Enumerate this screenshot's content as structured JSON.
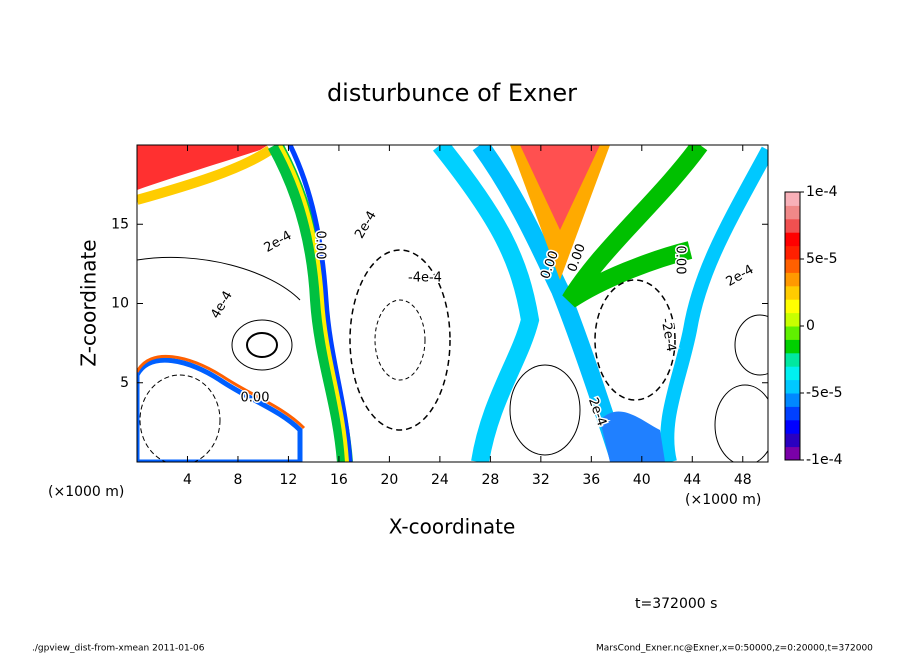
{
  "chart_data": {
    "type": "contour",
    "title": "disturbunce of Exner",
    "x_label": "X-coordinate",
    "y_label": "Z-coordinate",
    "x_unit": "(×1000 m)",
    "x_unit_right": "(×1000 m)",
    "xlim": [
      0,
      50
    ],
    "ylim": [
      0,
      20
    ],
    "xticks": [
      4,
      8,
      12,
      16,
      20,
      24,
      28,
      32,
      36,
      40,
      44,
      48
    ],
    "yticks": [
      5,
      10,
      15
    ],
    "colorbar": {
      "lim": [
        -0.0001,
        0.0001
      ],
      "ticks": [
        {
          "value": 0.0001,
          "label": "1e-4"
        },
        {
          "value": 5e-05,
          "label": "5e-5"
        },
        0,
        {
          "value": -5e-05,
          "label": "-5e-5"
        },
        {
          "value": -0.0001,
          "label": "-1e-4"
        }
      ],
      "colors": [
        "#7a00a8",
        "#2a00c0",
        "#0000ff",
        "#0040ff",
        "#0088ff",
        "#00c8ff",
        "#00f0f0",
        "#00e8a0",
        "#00d000",
        "#60f000",
        "#c8ff00",
        "#ffff00",
        "#ffcc00",
        "#ff9900",
        "#ff6000",
        "#ff2000",
        "#ff0000",
        "#f05050",
        "#f08888",
        "#f8b0b8"
      ]
    },
    "contour_labels": [
      "2e-4",
      "4e-4",
      "0.00",
      "2e-4",
      "-4e-4",
      "0.00",
      "0.00",
      "0.00",
      "-2e-4",
      "2e-4",
      "2e-4",
      "0.00"
    ],
    "time_note": "t=372000 s",
    "footer_left": "./gpview_dist-from-xmean  2011-01-06",
    "footer_right": "MarsCond_Exner.nc@Exner,x=0:50000,z=0:20000,t=372000"
  }
}
